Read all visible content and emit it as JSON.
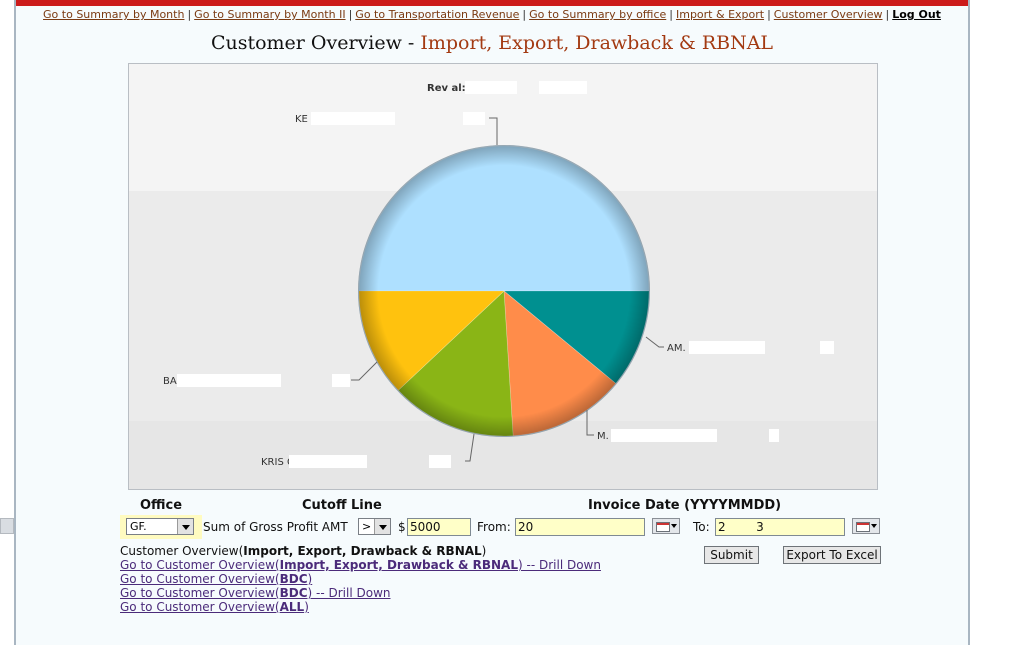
{
  "nav": {
    "items": [
      {
        "label": "Go to Summary by Month"
      },
      {
        "label": "Go to Summary by Month II"
      },
      {
        "label": "Go to Transportation Revenue"
      },
      {
        "label": "Go to Summary by office"
      },
      {
        "label": "Import & Export"
      },
      {
        "label": "Customer Overview"
      }
    ],
    "separator": "|",
    "logout_label": "Log Out"
  },
  "page": {
    "title_main": "Customer Overview - ",
    "title_accent": "Import, Export, Drawback & RBNAL"
  },
  "chart_data": {
    "type": "pie",
    "title": "Rev      al: $  5.,",
    "series": [
      {
        "label_visible": "KE                   S INC  , $2.    8",
        "value": 50,
        "color": "#aee0ff"
      },
      {
        "label_visible": "AM.                        EAL   , $-,   5",
        "value": 11,
        "color": "#009090"
      },
      {
        "label_visible": "M.                          L AME, $   814",
        "value": 13,
        "color": "#ff8c4a"
      },
      {
        "label_visible": "KRIS                   GHNUT C, $'.   5",
        "value": 14,
        "color": "#8ab516"
      },
      {
        "label_visible": "BA                       LP  , $7",
        "value": 12,
        "color": "#ffc20e"
      }
    ]
  },
  "form": {
    "office_header": "Office",
    "cutoff_header": "Cutoff Line",
    "invoice_header": "Invoice Date (YYYYMMDD)",
    "office_value": "GF.",
    "cutoff_field": "Sum of Gross Profit AMT",
    "operator_value": ">",
    "currency": "$",
    "amount_value": "5000",
    "from_label": "From:",
    "from_value": "20",
    "to_label": "To:",
    "to_value": "2        3",
    "submit_label": "Submit",
    "export_label": "Export To Excel"
  },
  "links": {
    "current_prefix": "Customer Overview(",
    "current_bold": "Import, Export, Drawback & RBNAL",
    "current_suffix": ")",
    "items": [
      {
        "prefix": "Go to Customer Overview(",
        "bold": "Import, Export, Drawback & RBNAL",
        "suffix": ") -- Drill Down"
      },
      {
        "prefix": "Go to Customer Overview(",
        "bold": "BDC",
        "suffix": ")"
      },
      {
        "prefix": "Go to Customer Overview(",
        "bold": "BDC",
        "suffix": ") -- Drill Down"
      },
      {
        "prefix": "Go to Customer Overview(",
        "bold": "ALL",
        "suffix": ")"
      }
    ]
  },
  "colors": {
    "accent": "#a33a12",
    "topbar": "#cc1b1b",
    "input_bg": "#ffffc8",
    "link": "#4b2b7a"
  }
}
